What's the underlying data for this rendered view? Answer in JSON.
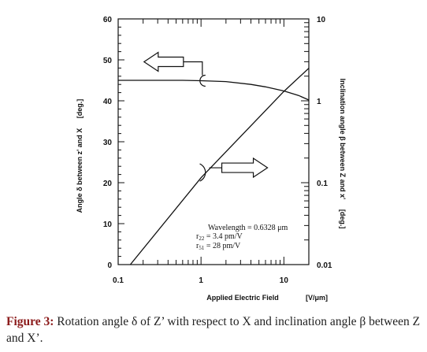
{
  "chart_data": {
    "type": "line",
    "xlabel": "Applied Electric Field",
    "xunit": "[V/μm]",
    "xscale": "log",
    "xlim": [
      0.1,
      20
    ],
    "xticks": [
      "0.1",
      "1",
      "10"
    ],
    "ylabel_left": "Angle δ between z' and X",
    "ylabel_left_unit": "[deg.]",
    "ylim_left": [
      0,
      60
    ],
    "yticks_left": [
      "0",
      "10",
      "20",
      "30",
      "40",
      "50",
      "60"
    ],
    "ylabel_right": "Inclination angle β between Z and x'",
    "ylabel_right_unit": "[deg.]",
    "yscale_right": "log",
    "ylim_right": [
      0.01,
      10
    ],
    "yticks_right": [
      "0.01",
      "0.1",
      "1",
      "10"
    ],
    "grid": false,
    "series": [
      {
        "axis": "left",
        "x": [
          0.1,
          0.3,
          0.6,
          1,
          2,
          4,
          6,
          10,
          15,
          20
        ],
        "y": [
          45,
          45,
          45,
          44.9,
          44.7,
          44.0,
          43.4,
          42.4,
          41.3,
          40.2
        ]
      },
      {
        "axis": "right",
        "x": [
          0.1,
          0.14,
          1,
          10,
          20
        ],
        "y": [
          0.0085,
          0.01,
          0.115,
          1.3,
          2.5
        ]
      }
    ],
    "annotations": {
      "line1": "Wavelength = 0.6328 μm",
      "line2_main": "r",
      "line2_sub": "22",
      "line2_rest": " = 3.4 pm/V",
      "line3_main": "r",
      "line3_sub": "51",
      "line3_rest": " = 28 pm/V"
    }
  },
  "caption": {
    "label": "Figure 3:",
    "text": " Rotation angle δ of Z’ with respect to X and inclination angle β  between Z and X’."
  },
  "colors": {
    "line": "#111111",
    "caption_label": "#8b1a1a"
  }
}
